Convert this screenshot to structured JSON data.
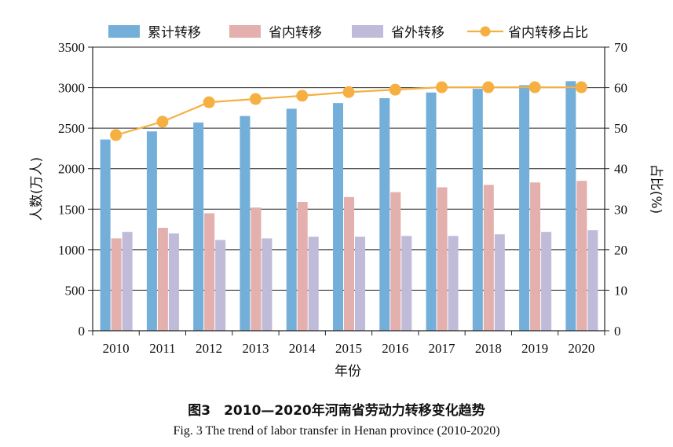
{
  "figure": {
    "caption_cn": "图3　2010—2020年河南省劳动力转移变化趋势",
    "caption_en": "Fig. 3   The trend of labor transfer in Henan province (2010-2020)"
  },
  "chart_data": {
    "type": "bar",
    "categories": [
      "2010",
      "2011",
      "2012",
      "2013",
      "2014",
      "2015",
      "2016",
      "2017",
      "2018",
      "2019",
      "2020"
    ],
    "xlabel": "年份",
    "ylabel": "人数(万人)",
    "y2label": "占比(%)",
    "ylim": [
      0,
      3500
    ],
    "y2lim": [
      0,
      70
    ],
    "yticks": [
      0,
      500,
      1000,
      1500,
      2000,
      2500,
      3000,
      3500
    ],
    "y2ticks": [
      0,
      10,
      20,
      30,
      40,
      50,
      60,
      70
    ],
    "grid": true,
    "legend_position": "top",
    "series": [
      {
        "name": "累计转移",
        "type": "bar",
        "axis": "left",
        "color": "#73afd9",
        "values": [
          2360,
          2460,
          2570,
          2650,
          2740,
          2810,
          2870,
          2940,
          2985,
          3030,
          3080
        ]
      },
      {
        "name": "省内转移",
        "type": "bar",
        "axis": "left",
        "color": "#e3b0ae",
        "values": [
          1140,
          1270,
          1450,
          1520,
          1590,
          1650,
          1710,
          1770,
          1800,
          1830,
          1850
        ]
      },
      {
        "name": "省外转移",
        "type": "bar",
        "axis": "left",
        "color": "#bfbbd8",
        "values": [
          1220,
          1200,
          1120,
          1140,
          1160,
          1160,
          1170,
          1170,
          1190,
          1220,
          1240
        ]
      },
      {
        "name": "省内转移占比",
        "type": "line",
        "axis": "right",
        "color": "#f5b041",
        "values": [
          48.3,
          51.6,
          56.4,
          57.2,
          58.0,
          58.9,
          59.5,
          60.1,
          60.1,
          60.1,
          60.1
        ]
      }
    ]
  }
}
